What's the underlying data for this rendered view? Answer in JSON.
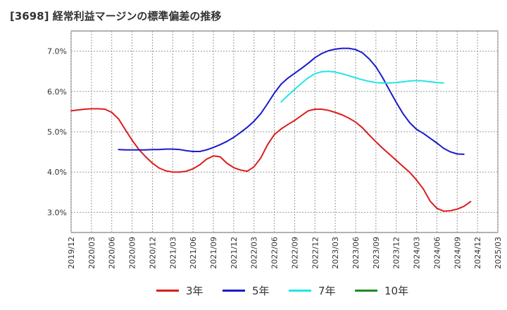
{
  "chart_data": {
    "type": "line",
    "title": "[3698]  経常利益マージンの標準偏差の推移",
    "x_ticks": [
      "2019/12",
      "2020/03",
      "2020/06",
      "2020/09",
      "2020/12",
      "2021/03",
      "2021/06",
      "2021/09",
      "2021/12",
      "2022/03",
      "2022/06",
      "2022/09",
      "2022/12",
      "2023/03",
      "2023/06",
      "2023/09",
      "2023/12",
      "2024/03",
      "2024/06",
      "2024/09",
      "2024/12",
      "2025/03"
    ],
    "y_ticks": [
      "3.0%",
      "4.0%",
      "5.0%",
      "6.0%",
      "7.0%"
    ],
    "ylim": [
      2.5,
      7.5
    ],
    "grid": true,
    "legend_position": "bottom",
    "series": [
      {
        "name": "3年",
        "color": "#dd1c1c",
        "start_index": 0,
        "values": [
          5.52,
          5.54,
          5.56,
          5.57,
          5.57,
          5.56,
          5.48,
          5.32,
          5.05,
          4.79,
          4.56,
          4.38,
          4.22,
          4.1,
          4.03,
          4.0,
          4.0,
          4.02,
          4.08,
          4.18,
          4.32,
          4.4,
          4.38,
          4.22,
          4.11,
          4.05,
          4.02,
          4.13,
          4.35,
          4.68,
          4.93,
          5.07,
          5.18,
          5.28,
          5.4,
          5.52,
          5.56,
          5.56,
          5.53,
          5.48,
          5.42,
          5.34,
          5.24,
          5.1,
          4.92,
          4.75,
          4.59,
          4.44,
          4.29,
          4.14,
          3.99,
          3.8,
          3.58,
          3.28,
          3.1,
          3.03,
          3.04,
          3.08,
          3.15,
          3.27
        ]
      },
      {
        "name": "5年",
        "color": "#1a1acc",
        "start_index": 7,
        "values": [
          4.56,
          4.55,
          4.55,
          4.55,
          4.55,
          4.56,
          4.56,
          4.57,
          4.57,
          4.56,
          4.53,
          4.51,
          4.51,
          4.55,
          4.61,
          4.68,
          4.76,
          4.86,
          4.98,
          5.11,
          5.26,
          5.45,
          5.7,
          5.96,
          6.18,
          6.33,
          6.45,
          6.57,
          6.7,
          6.84,
          6.94,
          7.01,
          7.05,
          7.07,
          7.07,
          7.04,
          6.96,
          6.81,
          6.61,
          6.34,
          6.03,
          5.73,
          5.45,
          5.22,
          5.06,
          4.96,
          4.84,
          4.72,
          4.59,
          4.5,
          4.45,
          4.44
        ]
      },
      {
        "name": "7年",
        "color": "#22e5e5",
        "start_index": 31,
        "values": [
          5.74,
          5.9,
          6.05,
          6.2,
          6.34,
          6.44,
          6.49,
          6.5,
          6.48,
          6.44,
          6.39,
          6.34,
          6.29,
          6.25,
          6.22,
          6.21,
          6.21,
          6.22,
          6.24,
          6.26,
          6.27,
          6.26,
          6.24,
          6.22,
          6.21
        ]
      },
      {
        "name": "10年",
        "color": "#1e8c1e",
        "start_index": 0,
        "values": []
      }
    ]
  }
}
